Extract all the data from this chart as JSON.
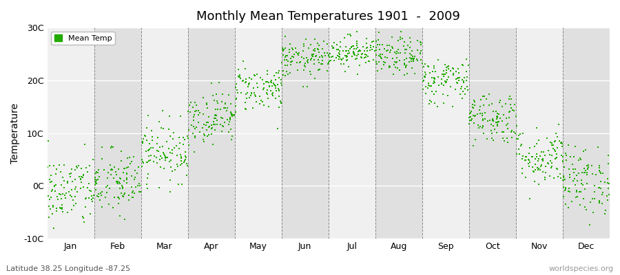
{
  "title": "Monthly Mean Temperatures 1901  -  2009",
  "ylabel": "Temperature",
  "subtitle": "Latitude 38.25 Longitude -87.25",
  "watermark": "worldspecies.org",
  "legend_label": "Mean Temp",
  "dot_color": "#22aa00",
  "background_color": "#ffffff",
  "band_color_odd": "#f0f0f0",
  "band_color_even": "#e0e0e0",
  "ylim": [
    -10,
    30
  ],
  "yticks": [
    -10,
    0,
    10,
    20,
    30
  ],
  "ytick_labels": [
    "-10C",
    "0C",
    "10C",
    "20C",
    "30C"
  ],
  "months": [
    "Jan",
    "Feb",
    "Mar",
    "Apr",
    "May",
    "Jun",
    "Jul",
    "Aug",
    "Sep",
    "Oct",
    "Nov",
    "Dec"
  ],
  "month_means": [
    -1.0,
    0.5,
    6.5,
    13.0,
    18.5,
    24.0,
    25.5,
    24.5,
    20.0,
    13.0,
    5.5,
    1.0
  ],
  "month_stds": [
    3.5,
    3.2,
    2.8,
    2.5,
    2.2,
    1.8,
    1.5,
    1.8,
    2.2,
    2.5,
    2.8,
    3.2
  ],
  "n_years": 109,
  "seed": 42,
  "dot_size": 3,
  "title_fontsize": 13,
  "axis_fontsize": 9,
  "ylabel_fontsize": 10
}
